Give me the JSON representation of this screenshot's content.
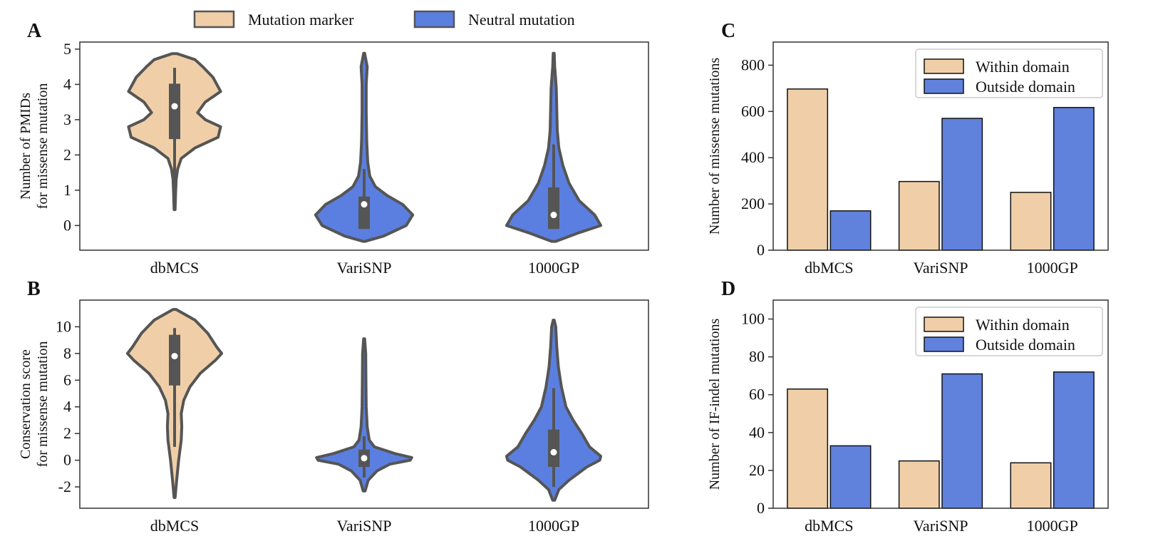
{
  "colors": {
    "marker": "#f0cfa8",
    "neutral": "#5b7fe0",
    "bar_blue": "#6082dc",
    "box": "#555555",
    "median": "#ffffff",
    "frame": "#333333"
  },
  "legend_top": {
    "marker_label": "Mutation marker",
    "neutral_label": "Neutral mutation"
  },
  "chart_data": [
    {
      "id": "A",
      "panel_label": "A",
      "type": "violin",
      "ylabel_lines": [
        "Number of PMIDs",
        "for missense mutation"
      ],
      "categories": [
        "dbMCS",
        "VariSNP",
        "1000GP"
      ],
      "ylim": [
        -0.7,
        5.2
      ],
      "yticks": [
        0,
        1,
        2,
        3,
        4,
        5
      ],
      "ytick_labels": [
        "0",
        "1",
        "2",
        "3",
        "4",
        "5"
      ],
      "series": [
        {
          "category": "dbMCS",
          "color_key": "marker",
          "median": 3.38,
          "q1": 2.45,
          "q3": 4.02,
          "whisker_low": 1.0,
          "whisker_high": 4.47,
          "profile": [
            [
              0.45,
              0.01
            ],
            [
              0.9,
              0.02
            ],
            [
              1.3,
              0.03
            ],
            [
              1.6,
              0.06
            ],
            [
              1.9,
              0.13
            ],
            [
              2.2,
              0.4
            ],
            [
              2.5,
              0.85
            ],
            [
              2.8,
              0.9
            ],
            [
              3.0,
              0.6
            ],
            [
              3.2,
              0.45
            ],
            [
              3.5,
              0.6
            ],
            [
              3.8,
              0.9
            ],
            [
              4.2,
              0.75
            ],
            [
              4.5,
              0.55
            ],
            [
              4.7,
              0.4
            ],
            [
              4.87,
              0.05
            ]
          ]
        },
        {
          "category": "VariSNP",
          "color_key": "neutral",
          "median": 0.6,
          "q1": -0.1,
          "q3": 0.82,
          "whisker_low": -0.1,
          "whisker_high": 1.6,
          "profile": [
            [
              -0.45,
              0.02
            ],
            [
              -0.3,
              0.38
            ],
            [
              0.0,
              0.82
            ],
            [
              0.3,
              0.95
            ],
            [
              0.6,
              0.75
            ],
            [
              0.85,
              0.45
            ],
            [
              1.1,
              0.22
            ],
            [
              1.4,
              0.11
            ],
            [
              1.8,
              0.07
            ],
            [
              2.4,
              0.05
            ],
            [
              3.2,
              0.04
            ],
            [
              4.0,
              0.04
            ],
            [
              4.5,
              0.06
            ],
            [
              4.88,
              0.01
            ]
          ]
        },
        {
          "category": "1000GP",
          "color_key": "neutral",
          "median": 0.3,
          "q1": -0.1,
          "q3": 1.08,
          "whisker_low": -0.1,
          "whisker_high": 2.3,
          "profile": [
            [
              -0.45,
              0.04
            ],
            [
              -0.2,
              0.5
            ],
            [
              0.0,
              0.92
            ],
            [
              0.3,
              0.8
            ],
            [
              0.7,
              0.5
            ],
            [
              1.2,
              0.3
            ],
            [
              1.7,
              0.18
            ],
            [
              2.2,
              0.1
            ],
            [
              2.7,
              0.07
            ],
            [
              3.3,
              0.06
            ],
            [
              3.9,
              0.05
            ],
            [
              4.5,
              0.02
            ],
            [
              4.88,
              0.01
            ]
          ]
        }
      ]
    },
    {
      "id": "B",
      "panel_label": "B",
      "type": "violin",
      "ylabel_lines": [
        "Conservation score",
        "for missense mutation"
      ],
      "categories": [
        "dbMCS",
        "VariSNP",
        "1000GP"
      ],
      "ylim": [
        -3.6,
        12.0
      ],
      "yticks": [
        -2,
        0,
        2,
        4,
        6,
        8,
        10
      ],
      "ytick_labels": [
        "-2",
        "0",
        "2",
        "4",
        "6",
        "8",
        "10"
      ],
      "series": [
        {
          "category": "dbMCS",
          "color_key": "marker",
          "median": 7.8,
          "q1": 5.6,
          "q3": 9.4,
          "whisker_low": 1.0,
          "whisker_high": 9.9,
          "profile": [
            [
              -2.8,
              0.01
            ],
            [
              -1.5,
              0.04
            ],
            [
              0.0,
              0.08
            ],
            [
              1.5,
              0.13
            ],
            [
              2.5,
              0.14
            ],
            [
              3.5,
              0.13
            ],
            [
              4.5,
              0.18
            ],
            [
              5.5,
              0.3
            ],
            [
              6.5,
              0.5
            ],
            [
              7.5,
              0.8
            ],
            [
              8.0,
              0.92
            ],
            [
              8.5,
              0.82
            ],
            [
              9.5,
              0.65
            ],
            [
              10.5,
              0.4
            ],
            [
              11.3,
              0.03
            ]
          ]
        },
        {
          "category": "VariSNP",
          "color_key": "neutral",
          "median": 0.15,
          "q1": -0.5,
          "q3": 0.8,
          "whisker_low": -1.3,
          "whisker_high": 1.8,
          "profile": [
            [
              -2.3,
              0.02
            ],
            [
              -1.5,
              0.08
            ],
            [
              -0.8,
              0.25
            ],
            [
              -0.3,
              0.5
            ],
            [
              0.0,
              0.9
            ],
            [
              0.2,
              0.93
            ],
            [
              0.5,
              0.6
            ],
            [
              1.0,
              0.2
            ],
            [
              1.5,
              0.1
            ],
            [
              2.5,
              0.06
            ],
            [
              4.0,
              0.04
            ],
            [
              6.0,
              0.035
            ],
            [
              8.0,
              0.03
            ],
            [
              9.1,
              0.01
            ]
          ]
        },
        {
          "category": "1000GP",
          "color_key": "neutral",
          "median": 0.6,
          "q1": -0.5,
          "q3": 2.3,
          "whisker_low": -2.0,
          "whisker_high": 5.4,
          "profile": [
            [
              -3.0,
              0.02
            ],
            [
              -2.2,
              0.1
            ],
            [
              -1.5,
              0.3
            ],
            [
              -0.5,
              0.65
            ],
            [
              0.0,
              0.9
            ],
            [
              0.3,
              0.92
            ],
            [
              1.0,
              0.7
            ],
            [
              2.0,
              0.55
            ],
            [
              3.0,
              0.38
            ],
            [
              4.0,
              0.24
            ],
            [
              5.5,
              0.15
            ],
            [
              7.0,
              0.09
            ],
            [
              8.5,
              0.06
            ],
            [
              10.0,
              0.04
            ],
            [
              10.5,
              0.01
            ]
          ]
        }
      ]
    },
    {
      "id": "C",
      "panel_label": "C",
      "type": "bar",
      "ylabel": "Number of missense mutations",
      "categories": [
        "dbMCS",
        "VariSNP",
        "1000GP"
      ],
      "ylim": [
        0,
        900
      ],
      "yticks": [
        0,
        200,
        400,
        600,
        800
      ],
      "ytick_labels": [
        "0",
        "200",
        "400",
        "600",
        "800"
      ],
      "legend": "top-right",
      "series": [
        {
          "name": "Within domain",
          "color_key": "marker",
          "values": [
            697,
            297,
            250
          ]
        },
        {
          "name": "Outside domain",
          "color_key": "bar_blue",
          "values": [
            170,
            570,
            617
          ]
        }
      ]
    },
    {
      "id": "D",
      "panel_label": "D",
      "type": "bar",
      "ylabel": "Number of IF-indel mutations",
      "categories": [
        "dbMCS",
        "VariSNP",
        "1000GP"
      ],
      "ylim": [
        0,
        110
      ],
      "yticks": [
        0,
        20,
        40,
        60,
        80,
        100
      ],
      "ytick_labels": [
        "0",
        "20",
        "40",
        "60",
        "80",
        "100"
      ],
      "legend": "top-right",
      "series": [
        {
          "name": "Within domain",
          "color_key": "marker",
          "values": [
            63,
            25,
            24
          ]
        },
        {
          "name": "Outside domain",
          "color_key": "bar_blue",
          "values": [
            33,
            71,
            72
          ]
        }
      ]
    }
  ]
}
